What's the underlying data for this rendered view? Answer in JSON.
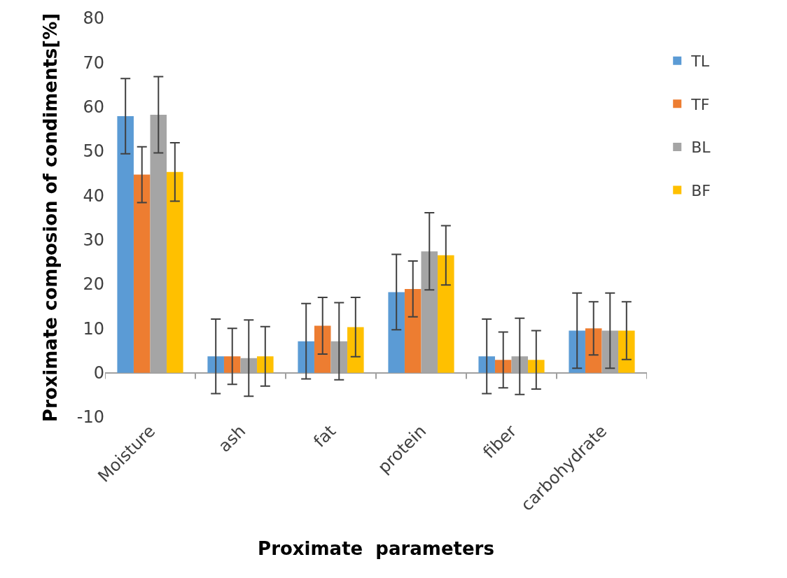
{
  "chart_data": {
    "type": "bar",
    "xlabel": "Proximate  parameters",
    "ylabel": "Proximate composion of condiments[%]",
    "categories": [
      "Moisture",
      "ash",
      "fat",
      "protein",
      "fiber",
      "carbohydrate"
    ],
    "series": [
      {
        "name": "TL",
        "color": "#5b9bd5",
        "values": [
          57.9,
          3.7,
          7.1,
          18.2,
          3.7,
          9.5
        ],
        "errors": [
          8.5,
          8.4,
          8.5,
          8.5,
          8.4,
          8.5
        ]
      },
      {
        "name": "TF",
        "color": "#ed7d31",
        "values": [
          44.7,
          3.7,
          10.6,
          18.9,
          2.9,
          10.0
        ],
        "errors": [
          6.3,
          6.3,
          6.4,
          6.3,
          6.3,
          6.0
        ]
      },
      {
        "name": "BL",
        "color": "#a5a5a5",
        "values": [
          58.2,
          3.3,
          7.1,
          27.4,
          3.7,
          9.5
        ],
        "errors": [
          8.6,
          8.6,
          8.7,
          8.7,
          8.6,
          8.5
        ]
      },
      {
        "name": "BF",
        "color": "#ffc000",
        "values": [
          45.3,
          3.7,
          10.3,
          26.5,
          2.9,
          9.5
        ],
        "errors": [
          6.6,
          6.7,
          6.7,
          6.7,
          6.6,
          6.5
        ]
      }
    ],
    "ylim": [
      -10,
      80
    ],
    "yticks": [
      -10,
      0,
      10,
      20,
      30,
      40,
      50,
      60,
      70,
      80
    ],
    "legend": "right"
  }
}
